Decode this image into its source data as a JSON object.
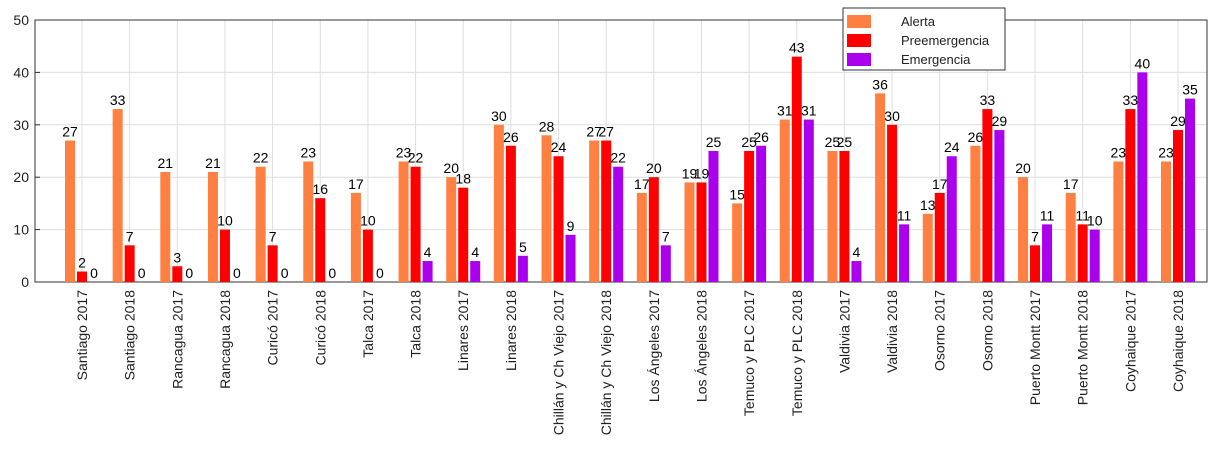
{
  "chart_data": {
    "type": "bar",
    "categories": [
      "Santiago 2017",
      "Santiago 2018",
      "Rancagua 2017",
      "Rancagua 2018",
      "Curicó 2017",
      "Curicó 2018",
      "Talca 2017",
      "Talca 2018",
      "Linares 2017",
      "Linares 2018",
      "Chillán y Ch Viejo 2017",
      "Chillán y Ch Viejo 2018",
      "Los Ángeles 2017",
      "Los Ángeles 2018",
      "Temuco y PLC 2017",
      "Temuco y PLC 2018",
      "Valdivia 2017",
      "Valdivia 2018",
      "Osorno 2017",
      "Osorno 2018",
      "Puerto Montt 2017",
      "Puerto Montt 2018",
      "Coyhaique 2017",
      "Coyhaique 2018"
    ],
    "series": [
      {
        "name": "Alerta",
        "color": "#ff8040",
        "values": [
          27,
          33,
          21,
          21,
          22,
          23,
          17,
          23,
          20,
          30,
          28,
          27,
          17,
          19,
          15,
          31,
          25,
          36,
          13,
          26,
          20,
          17,
          23,
          23
        ]
      },
      {
        "name": "Preemergencia",
        "color": "#ff0000",
        "values": [
          2,
          7,
          3,
          10,
          7,
          16,
          10,
          22,
          18,
          26,
          24,
          27,
          20,
          19,
          25,
          43,
          25,
          30,
          17,
          33,
          7,
          11,
          33,
          29
        ]
      },
      {
        "name": "Emergencia",
        "color": "#aa00ee",
        "values": [
          0,
          0,
          0,
          0,
          0,
          0,
          0,
          4,
          4,
          5,
          9,
          22,
          7,
          25,
          26,
          31,
          4,
          11,
          24,
          29,
          11,
          10,
          40,
          35
        ]
      }
    ],
    "ylim": [
      0,
      50
    ],
    "yticks": [
      0,
      10,
      20,
      30,
      40,
      50
    ],
    "grid": true,
    "legend": "upper right",
    "data_labels": true
  }
}
